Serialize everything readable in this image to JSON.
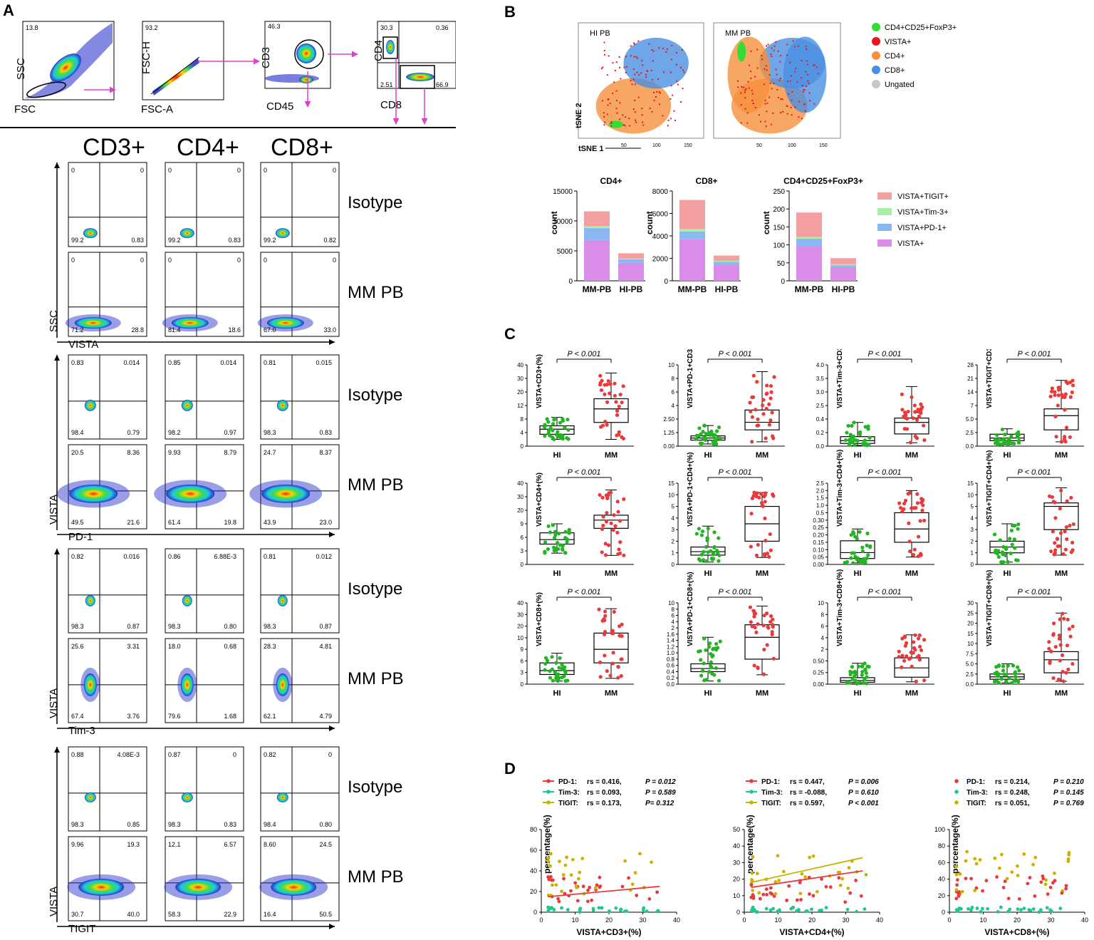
{
  "panels": {
    "a": "A",
    "b": "B",
    "c": "C",
    "d": "D"
  },
  "gating": [
    {
      "corner": "13.8",
      "x": "FSC",
      "y": "SSC"
    },
    {
      "corner": "93.2",
      "x": "FSC-A",
      "y": "FSC-H"
    },
    {
      "corner": "46.3",
      "x": "CD45",
      "y": "CD3"
    },
    {
      "q_tl": "30.3",
      "q_tr": "0.36",
      "q_bl": "2.51",
      "q_br": "66.9",
      "x": "CD8",
      "y": "CD4"
    }
  ],
  "columns": [
    "CD3+",
    "CD4+",
    "CD8+"
  ],
  "row_labels": {
    "isotype": "Isotype",
    "mm": "MM PB"
  },
  "flow_groups": [
    {
      "x_label": "VISTA",
      "y_label": "SSC",
      "rows": [
        {
          "label": "Isotype",
          "plots": [
            [
              "0",
              "0",
              "99.2",
              "0.83"
            ],
            [
              "0",
              "0",
              "99.2",
              "0.83"
            ],
            [
              "0",
              "0",
              "99.2",
              "0.82"
            ]
          ]
        },
        {
          "label": "MM PB",
          "plots": [
            [
              "0",
              "0",
              "71.2",
              "28.8"
            ],
            [
              "0",
              "0",
              "81.4",
              "18.6"
            ],
            [
              "0",
              "0",
              "67.0",
              "33.0"
            ]
          ]
        }
      ]
    },
    {
      "x_label": "PD-1",
      "y_label": "VISTA",
      "rows": [
        {
          "label": "Isotype",
          "plots": [
            [
              "0.83",
              "0.014",
              "98.4",
              "0.79"
            ],
            [
              "0.85",
              "0.014",
              "98.2",
              "0.97"
            ],
            [
              "0.81",
              "0.015",
              "98.3",
              "0.83"
            ]
          ]
        },
        {
          "label": "MM PB",
          "plots": [
            [
              "20.5",
              "8.36",
              "49.5",
              "21.6"
            ],
            [
              "9.93",
              "8.79",
              "61.4",
              "19.8"
            ],
            [
              "24.7",
              "8.37",
              "43.9",
              "23.0"
            ]
          ]
        }
      ]
    },
    {
      "x_label": "Tim-3",
      "y_label": "VISTA",
      "rows": [
        {
          "label": "Isotype",
          "plots": [
            [
              "0.82",
              "0.016",
              "98.3",
              "0.87"
            ],
            [
              "0.86",
              "6.88E-3",
              "98.3",
              "0.80"
            ],
            [
              "0.81",
              "0.012",
              "98.3",
              "0.87"
            ]
          ]
        },
        {
          "label": "MM PB",
          "plots": [
            [
              "25.6",
              "3.31",
              "67.4",
              "3.76"
            ],
            [
              "18.0",
              "0.68",
              "79.6",
              "1.68"
            ],
            [
              "28.3",
              "4.81",
              "62.1",
              "4.79"
            ]
          ]
        }
      ]
    },
    {
      "x_label": "TIGIT",
      "y_label": "VISTA",
      "rows": [
        {
          "label": "Isotype",
          "plots": [
            [
              "0.88",
              "4.08E-3",
              "98.3",
              "0.85"
            ],
            [
              "0.87",
              "0",
              "98.3",
              "0.83"
            ],
            [
              "0.82",
              "0",
              "98.4",
              "0.80"
            ]
          ]
        },
        {
          "label": "MM PB",
          "plots": [
            [
              "9.96",
              "19.3",
              "30.7",
              "40.0"
            ],
            [
              "12.1",
              "6.57",
              "58.3",
              "22.9"
            ],
            [
              "8.60",
              "24.5",
              "16.4",
              "50.5"
            ]
          ]
        }
      ]
    }
  ],
  "tsne": {
    "titles": [
      "HI PB",
      "MM PB"
    ],
    "xlabel": "tSNE 1",
    "ylabel": "tSNE 2",
    "ticks": [
      "50",
      "100",
      "150"
    ],
    "legend": [
      {
        "label": "CD4+CD25+FoxP3+",
        "color": "#33dd33"
      },
      {
        "label": "VISTA+",
        "color": "#e8141e"
      },
      {
        "label": "CD4+",
        "color": "#f5913c"
      },
      {
        "label": "CD8+",
        "color": "#4a90e2"
      },
      {
        "label": "Ungated",
        "color": "#c8c8c8"
      }
    ]
  },
  "bar_legend": [
    {
      "label": "VISTA+TIGIT+",
      "color": "#f5a0a0"
    },
    {
      "label": "VISTA+Tim-3+",
      "color": "#a8f0a8"
    },
    {
      "label": "VISTA+PD-1+",
      "color": "#8ab8f0"
    },
    {
      "label": "VISTA+",
      "color": "#d98ce8"
    }
  ],
  "chart_data": [
    {
      "type": "bar",
      "title": "CD4+",
      "ylabel": "count",
      "categories": [
        "MM-PB",
        "HI-PB"
      ],
      "ylim": [
        0,
        15000
      ],
      "yticks": [
        "0",
        "5000",
        "10000",
        "15000"
      ],
      "series": [
        {
          "name": "VISTA+",
          "values": [
            6800,
            3000
          ]
        },
        {
          "name": "VISTA+PD-1+",
          "values": [
            2000,
            600
          ]
        },
        {
          "name": "VISTA+Tim-3+",
          "values": [
            300,
            100
          ]
        },
        {
          "name": "VISTA+TIGIT+",
          "values": [
            2500,
            900
          ]
        }
      ]
    },
    {
      "type": "bar",
      "title": "CD8+",
      "ylabel": "count",
      "categories": [
        "MM-PB",
        "HI-PB"
      ],
      "ylim": [
        0,
        8000
      ],
      "yticks": [
        "0",
        "2000",
        "4000",
        "6000",
        "8000"
      ],
      "series": [
        {
          "name": "VISTA+",
          "values": [
            3700,
            1400
          ]
        },
        {
          "name": "VISTA+PD-1+",
          "values": [
            700,
            300
          ]
        },
        {
          "name": "VISTA+Tim-3+",
          "values": [
            200,
            80
          ]
        },
        {
          "name": "VISTA+TIGIT+",
          "values": [
            2600,
            470
          ]
        }
      ]
    },
    {
      "type": "bar",
      "title": "CD4+CD25+FoxP3+",
      "ylabel": "count",
      "categories": [
        "MM-PB",
        "HI-PB"
      ],
      "ylim": [
        0,
        250
      ],
      "yticks": [
        "0",
        "50",
        "100",
        "150",
        "200",
        "250"
      ],
      "series": [
        {
          "name": "VISTA+",
          "values": [
            97,
            38
          ]
        },
        {
          "name": "VISTA+PD-1+",
          "values": [
            20,
            5
          ]
        },
        {
          "name": "VISTA+Tim-3+",
          "values": [
            5,
            3
          ]
        },
        {
          "name": "VISTA+TIGIT+",
          "values": [
            68,
            17
          ]
        }
      ]
    }
  ],
  "box_plots": {
    "groups": [
      "HI",
      "MM"
    ],
    "pvalue": "P < 0.001",
    "plots": [
      {
        "ylabel": "VISTA+CD3+(%)",
        "yticks": [
          "0",
          "4",
          "8",
          "12",
          "20",
          "30",
          "40"
        ],
        "hi": [
          3.5,
          5,
          6,
          2,
          8.5
        ],
        "mm": [
          7,
          11,
          16,
          2,
          34
        ]
      },
      {
        "ylabel": "VISTA+PD-1+CD3+(%)",
        "yticks": [
          "0.00",
          "1.25",
          "2.50",
          "4",
          "6",
          "8",
          "10"
        ],
        "hi": [
          0.55,
          0.75,
          0.95,
          0.2,
          1.9
        ],
        "mm": [
          1.5,
          2.2,
          3.5,
          0.4,
          9
        ]
      },
      {
        "ylabel": "VISTA+Tim-3+CD3+(%)",
        "yticks": [
          "0.0",
          "0.2",
          "0.4",
          "2.5",
          "3.0",
          "3.5",
          "4.0"
        ],
        "hi": [
          0.04,
          0.08,
          0.14,
          0.01,
          0.35
        ],
        "mm": [
          0.18,
          0.35,
          0.55,
          0.05,
          3.2
        ]
      },
      {
        "ylabel": "VISTA+TIGIT+CD3+(%)",
        "yticks": [
          "0.0",
          "2.5",
          "5.0",
          "7",
          "14",
          "21",
          "28"
        ],
        "hi": [
          1,
          1.5,
          2.2,
          0.3,
          3.2
        ],
        "mm": [
          3,
          5.5,
          6.5,
          0.8,
          20
        ]
      },
      {
        "ylabel": "VISTA+CD4+(%)",
        "yticks": [
          "0",
          "3",
          "6",
          "9",
          "20",
          "30",
          "40"
        ],
        "hi": [
          4.5,
          5.5,
          7,
          2.5,
          9
        ],
        "mm": [
          8,
          12,
          16,
          2,
          35
        ]
      },
      {
        "ylabel": "VISTA+PD-1+CD4+(%)",
        "yticks": [
          "0",
          "1",
          "2",
          "3",
          "4",
          "5",
          "10",
          "15"
        ],
        "hi": [
          0.8,
          1.1,
          1.5,
          0.2,
          3.3
        ],
        "mm": [
          2,
          3.5,
          5,
          0.6,
          11
        ]
      },
      {
        "ylabel": "VISTA+Tim-3+CD4+(%)",
        "yticks": [
          "0.00",
          "0.05",
          "0.10",
          "0.15",
          "0.20",
          "0.25",
          "0.30",
          "0.5",
          "1.0",
          "1.5",
          "2.0",
          "2.5"
        ],
        "hi": [
          0.04,
          0.08,
          0.16,
          0.01,
          0.24
        ],
        "mm": [
          0.15,
          0.24,
          0.5,
          0.05,
          2
        ]
      },
      {
        "ylabel": "VISTA+TIGIT+CD4+(%)",
        "yticks": [
          "0",
          "1",
          "2",
          "3",
          "4",
          "5",
          "10",
          "15"
        ],
        "hi": [
          1,
          1.5,
          2,
          0.2,
          3.5
        ],
        "mm": [
          3,
          5,
          6.5,
          0.8,
          13
        ]
      },
      {
        "ylabel": "VISTA+CD8+(%)",
        "yticks": [
          "0",
          "3",
          "6",
          "9",
          "10",
          "20",
          "30",
          "40"
        ],
        "hi": [
          2.5,
          3.5,
          5.5,
          0.8,
          8
        ],
        "mm": [
          5.5,
          9,
          14,
          1.5,
          35
        ]
      },
      {
        "ylabel": "VISTA+PD-1+CD8+(%)",
        "yticks": [
          "0.0",
          "0.2",
          "0.4",
          "0.6",
          "0.8",
          "1.0",
          "1.2",
          "1.4",
          "1.6",
          "2",
          "4",
          "6",
          "8",
          "10"
        ],
        "hi": [
          0.4,
          0.5,
          0.65,
          0.1,
          1.5
        ],
        "mm": [
          0.8,
          1.5,
          3,
          0.3,
          9
        ]
      },
      {
        "ylabel": "VISTA+Tim-3+CD8+(%)",
        "yticks": [
          "0.00",
          "0.25",
          "0.50",
          "2",
          "4",
          "6",
          "8",
          "10"
        ],
        "hi": [
          0.04,
          0.08,
          0.14,
          0.01,
          0.45
        ],
        "mm": [
          0.15,
          0.35,
          0.9,
          0.05,
          4.5
        ]
      },
      {
        "ylabel": "VISTA+TIGIT+CD8+(%)",
        "yticks": [
          "0.0",
          "2.5",
          "5.0",
          "7.5",
          "10",
          "15",
          "20",
          "25",
          "30"
        ],
        "hi": [
          1.2,
          1.8,
          2.5,
          0.3,
          5
        ],
        "mm": [
          2.8,
          6,
          8,
          0.7,
          25
        ]
      }
    ]
  },
  "scatter": {
    "ylabel": "percentage(%)",
    "plots": [
      {
        "xlabel": "VISTA+CD3+(%)",
        "yticks": [
          "0",
          "20",
          "40",
          "60",
          "80"
        ],
        "ymax": 80,
        "xticks": [
          "0",
          "10",
          "20",
          "30",
          "40"
        ],
        "legend": [
          {
            "name": "PD-1:",
            "rs": "rs = 0.416, ",
            "p": "P = 0.012",
            "color": "#e83a3a"
          },
          {
            "name": "Tim-3:",
            "rs": "rs = 0.093, ",
            "p": "P = 0.589",
            "color": "#1ec88c"
          },
          {
            "name": "TIGIT:",
            "rs": "rs = 0.173, ",
            "p": "P= 0.312",
            "color": "#c8b400"
          }
        ],
        "lines": [
          {
            "color": "#e83a3a",
            "x0": 2,
            "y0": 15,
            "x1": 35,
            "y1": 25
          }
        ]
      },
      {
        "xlabel": "VISTA+CD4+(%)",
        "yticks": [
          "0",
          "10",
          "20",
          "30",
          "40",
          "50"
        ],
        "ymax": 50,
        "xticks": [
          "0",
          "10",
          "20",
          "30",
          "40"
        ],
        "legend": [
          {
            "name": "PD-1:",
            "rs": "rs = 0.447, ",
            "p": "P = 0.006",
            "color": "#e83a3a"
          },
          {
            "name": "Tim-3:",
            "rs": "rs = -0.088, ",
            "p": "P = 0.610",
            "color": "#1ec88c"
          },
          {
            "name": "TIGIT:",
            "rs": "rs = 0.597, ",
            "p": "P < 0.001",
            "color": "#c8b400"
          }
        ],
        "lines": [
          {
            "color": "#e83a3a",
            "x0": 2,
            "y0": 15,
            "x1": 35,
            "y1": 25
          },
          {
            "color": "#c8b400",
            "x0": 2,
            "y0": 18,
            "x1": 35,
            "y1": 33
          }
        ]
      },
      {
        "xlabel": "VISTA+CD8+(%)",
        "yticks": [
          "0",
          "20",
          "40",
          "60",
          "80",
          "100"
        ],
        "ymax": 100,
        "xticks": [
          "0",
          "10",
          "20",
          "30",
          "40"
        ],
        "legend": [
          {
            "name": "PD-1:",
            "rs": "rs = 0.214, ",
            "p": "P = 0.210",
            "color": "#e83a3a"
          },
          {
            "name": "Tim-3:",
            "rs": "rs = 0.248, ",
            "p": "P = 0.145",
            "color": "#1ec88c"
          },
          {
            "name": "TIGIT:",
            "rs": "rs = 0.051, ",
            "p": "P = 0.769",
            "color": "#c8b400"
          }
        ],
        "lines": []
      }
    ]
  }
}
